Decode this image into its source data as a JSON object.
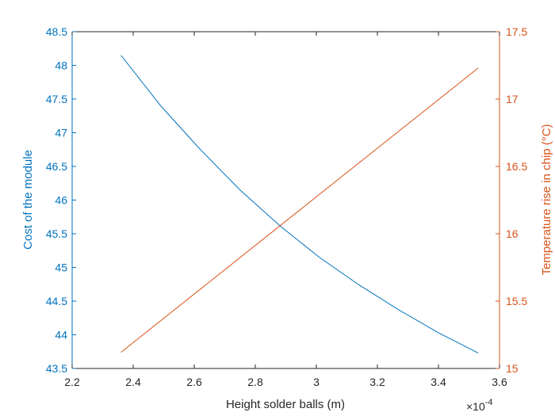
{
  "chart_data": {
    "type": "line",
    "xlabel": "Height solder balls (m)",
    "x_exponent_label": "×10",
    "x_exponent_power": "-4",
    "xlim": [
      2.2,
      3.6
    ],
    "x_ticks": [
      2.2,
      2.4,
      2.6,
      2.8,
      3.0,
      3.2,
      3.4,
      3.6
    ],
    "x_tick_labels": [
      "2.2",
      "2.4",
      "2.6",
      "2.8",
      "3",
      "3.2",
      "3.4",
      "3.6"
    ],
    "y_left": {
      "label": "Cost of the module",
      "lim": [
        43.5,
        48.5
      ],
      "ticks": [
        43.5,
        44,
        44.5,
        45,
        45.5,
        46,
        46.5,
        47,
        47.5,
        48,
        48.5
      ],
      "tick_labels": [
        "43.5",
        "44",
        "44.5",
        "45",
        "45.5",
        "46",
        "46.5",
        "47",
        "47.5",
        "48",
        "48.5"
      ],
      "color": "#0072BD"
    },
    "y_right": {
      "label": "Temperature rise in chip (°C)",
      "lim": [
        15,
        17.5
      ],
      "ticks": [
        15,
        15.5,
        16,
        16.5,
        17,
        17.5
      ],
      "tick_labels": [
        "15",
        "15.5",
        "16",
        "16.5",
        "17",
        "17.5"
      ],
      "color": "#D95319"
    },
    "grid": false,
    "series": [
      {
        "axis": "left",
        "color": "#0072BD",
        "x": [
          2.36,
          2.49,
          2.62,
          2.75,
          2.88,
          3.01,
          3.14,
          3.27,
          3.4,
          3.53
        ],
        "values": [
          48.15,
          47.4,
          46.75,
          46.15,
          45.62,
          45.15,
          44.74,
          44.37,
          44.03,
          43.73
        ]
      },
      {
        "axis": "right",
        "color": "#D95319",
        "x": [
          2.36,
          3.53
        ],
        "values": [
          15.12,
          17.23
        ]
      }
    ]
  }
}
